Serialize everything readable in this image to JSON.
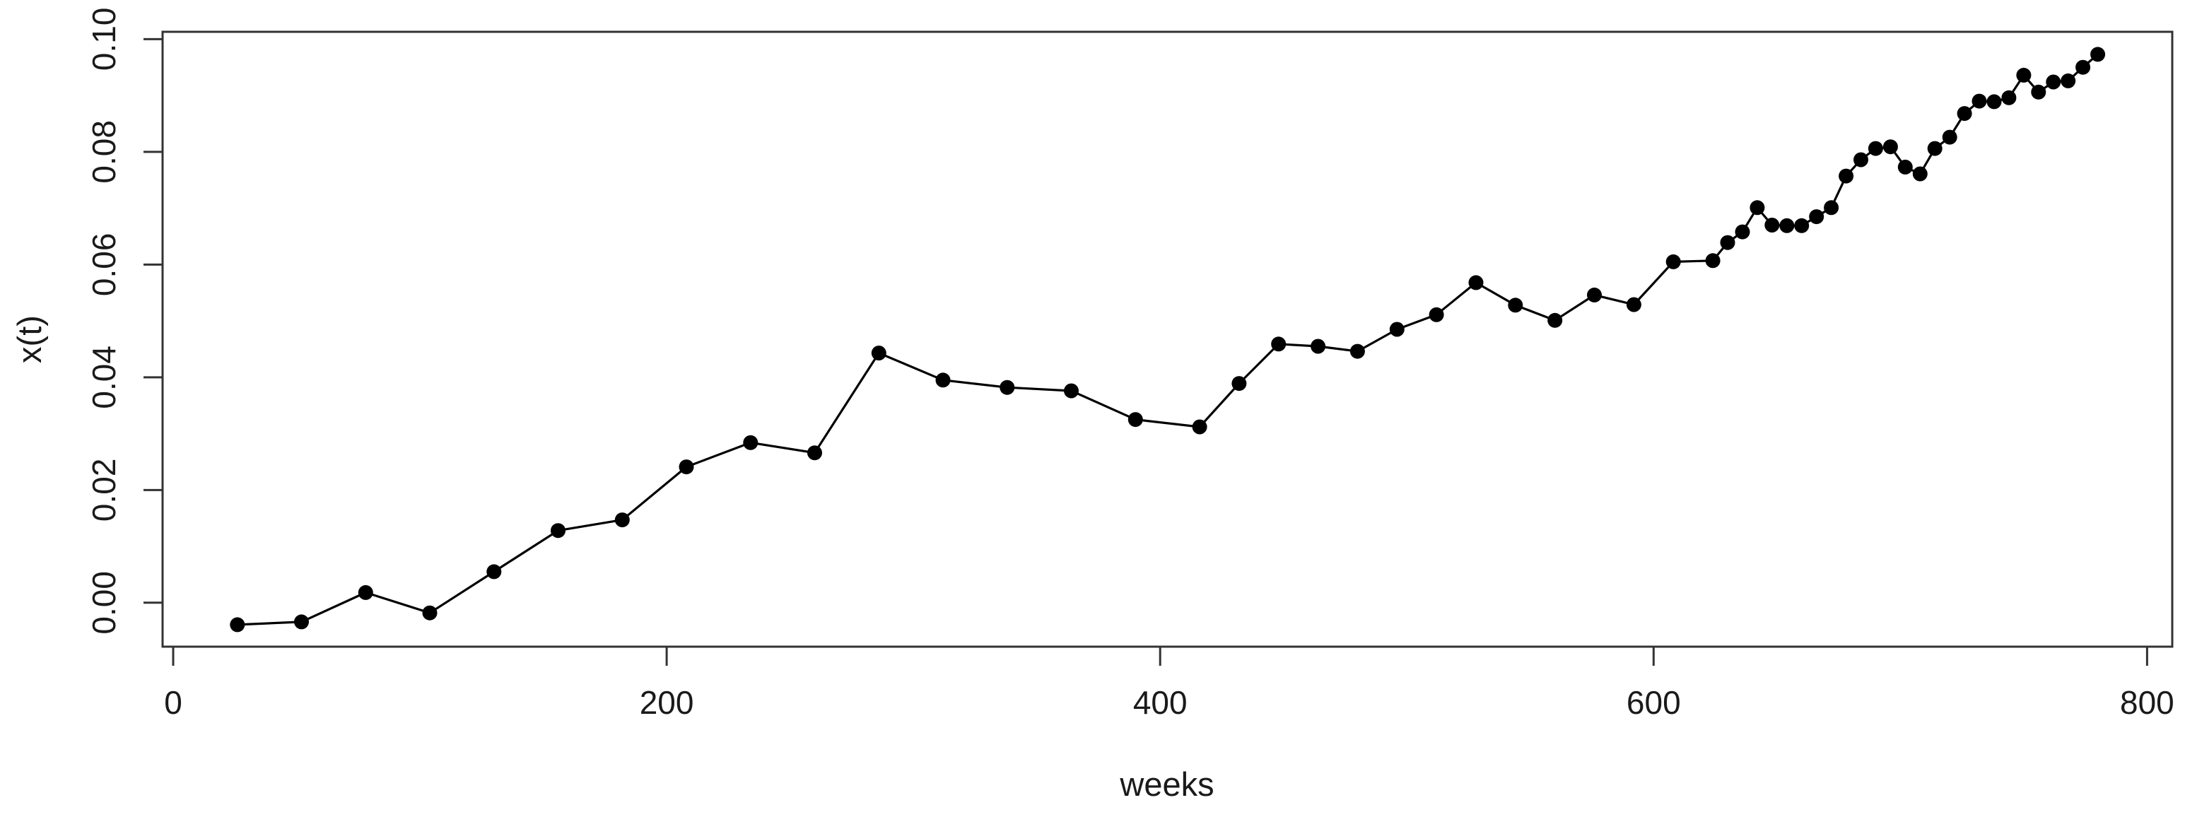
{
  "chart_data": {
    "type": "line",
    "title": "",
    "xlabel": "weeks",
    "ylabel": "x(t)",
    "legend_position": "none",
    "grid": false,
    "marker": "filled-circle",
    "line_color": "#000000",
    "marker_color": "#000000",
    "frame_color": "#333333",
    "tick_color": "#333333",
    "label_color": "#1a1a1a",
    "background": "#ffffff",
    "xlim": [
      -4.3,
      810.2
    ],
    "ylim": [
      -0.0078,
      0.1013
    ],
    "x_ticks": [
      0,
      200,
      400,
      600,
      800
    ],
    "x_tick_labels": [
      "0",
      "200",
      "400",
      "600",
      "800"
    ],
    "y_ticks": [
      0.0,
      0.02,
      0.04,
      0.06,
      0.08,
      0.1
    ],
    "y_tick_labels": [
      "0.00",
      "0.02",
      "0.04",
      "0.06",
      "0.08",
      "0.10"
    ],
    "x": [
      26,
      52,
      78,
      104,
      130,
      156,
      182,
      208,
      234,
      260,
      286,
      312,
      338,
      364,
      390,
      416,
      432,
      448,
      464,
      480,
      496,
      512,
      528,
      544,
      560,
      576,
      592,
      608,
      624,
      630,
      636,
      642,
      648,
      654,
      660,
      666,
      672,
      678,
      684,
      690,
      696,
      702,
      708,
      714,
      720,
      726,
      732,
      738,
      744,
      750,
      756,
      762,
      768,
      774,
      780
    ],
    "y": [
      -0.0039,
      -0.0034,
      0.0018,
      -0.0018,
      0.0055,
      0.0128,
      0.0147,
      0.0241,
      0.0284,
      0.0266,
      0.0443,
      0.0395,
      0.0382,
      0.0376,
      0.0325,
      0.0312,
      0.0389,
      0.0459,
      0.0455,
      0.0446,
      0.0485,
      0.0511,
      0.0568,
      0.0528,
      0.0501,
      0.0546,
      0.0529,
      0.0605,
      0.0607,
      0.0639,
      0.0658,
      0.0701,
      0.067,
      0.0669,
      0.0669,
      0.0685,
      0.0701,
      0.0757,
      0.0786,
      0.0806,
      0.0809,
      0.0773,
      0.0761,
      0.0806,
      0.0826,
      0.0868,
      0.089,
      0.0889,
      0.0896,
      0.0936,
      0.0906,
      0.0924,
      0.0926,
      0.095,
      0.0973
    ]
  }
}
